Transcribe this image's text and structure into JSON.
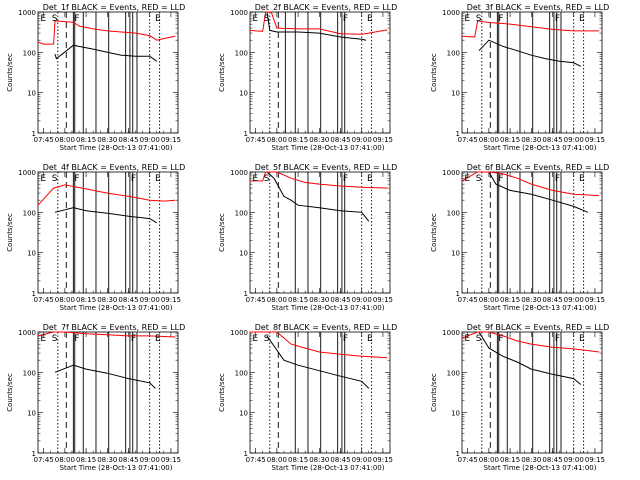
{
  "x_ticks": [
    "07:45",
    "08:00",
    "08:15",
    "08:30",
    "08:45",
    "09:00",
    "09:15"
  ],
  "y_ticks": [
    "1",
    "10",
    "100",
    "1000"
  ],
  "ylabel": "Counts/sec",
  "xlabel": "Start Time (28-Oct-13 07:41:00)",
  "colors": {
    "events": "#000000",
    "lld": "#ff0000",
    "markers": "#000000"
  },
  "chart_data": [
    {
      "type": "line",
      "title": "Det_1f BLACK = Events, RED = LLD",
      "xlabel": "Start Time (28-Oct-13 07:41:00)",
      "ylabel": "Counts/sec",
      "xlim": [
        "07:41",
        "09:20"
      ],
      "ylim": [
        1,
        1000
      ],
      "yscale": "log",
      "labels": [
        {
          "text": "E",
          "x": "07:42"
        },
        {
          "text": "S",
          "x": "07:50"
        },
        {
          "text": "F",
          "x": "08:06"
        },
        {
          "text": "E",
          "x": "09:03"
        }
      ],
      "dashed_lines": [
        "07:55",
        "08:01",
        "09:00",
        "09:07"
      ],
      "solid_lines": [
        "08:06",
        "08:07",
        "08:13",
        "08:22",
        "08:31",
        "08:43",
        "08:46",
        "08:48",
        "08:51"
      ],
      "series": [
        {
          "name": "Events",
          "x": [
            "07:48",
            "07:53",
            "07:54",
            "08:06",
            "08:10",
            "08:20",
            "08:30",
            "08:40",
            "08:50",
            "09:00",
            "09:05"
          ],
          "y": [
            null,
            90,
            70,
            150,
            140,
            120,
            100,
            85,
            80,
            80,
            60
          ]
        },
        {
          "name": "LLD",
          "x": [
            "07:41",
            "07:45",
            "07:52",
            "07:53",
            "08:06",
            "08:10",
            "08:20",
            "08:30",
            "08:40",
            "08:50",
            "09:00",
            "09:05",
            "09:10",
            "09:18"
          ],
          "y": [
            180,
            160,
            160,
            600,
            560,
            450,
            380,
            340,
            320,
            300,
            260,
            200,
            220,
            250
          ]
        }
      ]
    },
    {
      "type": "line",
      "title": "Det_2f BLACK = Events, RED = LLD",
      "xlabel": "Start Time (28-Oct-13 07:41:00)",
      "ylabel": "Counts/sec",
      "xlim": [
        "07:41",
        "09:20"
      ],
      "ylim": [
        1,
        1000
      ],
      "yscale": "log",
      "labels": [
        {
          "text": "E",
          "x": "07:42"
        },
        {
          "text": "S",
          "x": "07:50"
        },
        {
          "text": "F",
          "x": "08:46"
        },
        {
          "text": "E",
          "x": "09:03"
        }
      ],
      "dashed_lines": [
        "07:55",
        "08:01",
        "09:00",
        "09:07"
      ],
      "solid_lines": [
        "08:06",
        "08:13",
        "08:22",
        "08:31",
        "08:43",
        "08:46",
        "08:48"
      ],
      "series": [
        {
          "name": "Events",
          "x": [
            "07:53",
            "07:55",
            "08:00",
            "08:15",
            "08:30",
            "08:45",
            "09:00",
            "09:03"
          ],
          "y": [
            1000,
            350,
            320,
            320,
            300,
            240,
            210,
            200
          ]
        },
        {
          "name": "LLD",
          "x": [
            "07:41",
            "07:50",
            "07:52",
            "07:56",
            "08:00",
            "08:15",
            "08:30",
            "08:45",
            "09:00",
            "09:05",
            "09:18"
          ],
          "y": [
            350,
            330,
            1000,
            1000,
            400,
            380,
            380,
            290,
            280,
            300,
            360
          ]
        }
      ]
    },
    {
      "type": "line",
      "title": "Det_3f BLACK = Events, RED = LLD",
      "xlabel": "Start Time (28-Oct-13 07:41:00)",
      "ylabel": "Counts/sec",
      "xlim": [
        "07:41",
        "09:20"
      ],
      "ylim": [
        1,
        1000
      ],
      "yscale": "log",
      "labels": [
        {
          "text": "E",
          "x": "07:42"
        },
        {
          "text": "S",
          "x": "07:50"
        },
        {
          "text": "F",
          "x": "08:06"
        },
        {
          "text": "F",
          "x": "08:46"
        },
        {
          "text": "E",
          "x": "09:03"
        }
      ],
      "dashed_lines": [
        "07:55",
        "08:01",
        "09:00",
        "09:07"
      ],
      "solid_lines": [
        "08:06",
        "08:07",
        "08:13",
        "08:22",
        "08:31",
        "08:43",
        "08:46",
        "08:48",
        "08:51"
      ],
      "series": [
        {
          "name": "Events",
          "x": [
            "07:53",
            "08:00",
            "08:10",
            "08:20",
            "08:30",
            "08:40",
            "08:50",
            "09:00",
            "09:05"
          ],
          "y": [
            110,
            200,
            140,
            110,
            85,
            70,
            60,
            55,
            45
          ]
        },
        {
          "name": "LLD",
          "x": [
            "07:41",
            "07:50",
            "07:52",
            "08:00",
            "08:15",
            "08:30",
            "08:45",
            "09:00",
            "09:18"
          ],
          "y": [
            250,
            240,
            600,
            550,
            500,
            430,
            370,
            340,
            340
          ]
        }
      ]
    },
    {
      "type": "line",
      "title": "Det_4f BLACK = Events, RED = LLD",
      "xlabel": "Start Time (28-Oct-13 07:41:00)",
      "ylabel": "Counts/sec",
      "xlim": [
        "07:41",
        "09:20"
      ],
      "ylim": [
        1,
        1000
      ],
      "yscale": "log",
      "labels": [
        {
          "text": "E",
          "x": "07:42"
        },
        {
          "text": "S",
          "x": "07:50"
        },
        {
          "text": "F",
          "x": "08:06"
        },
        {
          "text": "F",
          "x": "08:46"
        },
        {
          "text": "E",
          "x": "09:03"
        }
      ],
      "dashed_lines": [
        "07:55",
        "08:01",
        "09:00",
        "09:07"
      ],
      "solid_lines": [
        "08:06",
        "08:07",
        "08:13",
        "08:22",
        "08:31",
        "08:43",
        "08:46",
        "08:48",
        "08:51"
      ],
      "series": [
        {
          "name": "Events",
          "x": [
            "07:53",
            "08:06",
            "08:15",
            "08:30",
            "08:45",
            "09:00",
            "09:05"
          ],
          "y": [
            100,
            130,
            110,
            95,
            80,
            70,
            55
          ]
        },
        {
          "name": "LLD",
          "x": [
            "07:41",
            "07:52",
            "08:00",
            "08:15",
            "08:30",
            "08:45",
            "09:00",
            "09:10",
            "09:18"
          ],
          "y": [
            150,
            400,
            480,
            380,
            300,
            250,
            200,
            190,
            200
          ]
        }
      ]
    },
    {
      "type": "line",
      "title": "Det_5f BLACK = Events, RED = LLD",
      "xlabel": "Start Time (28-Oct-13 07:41:00)",
      "ylabel": "Counts/sec",
      "xlim": [
        "07:41",
        "09:20"
      ],
      "ylim": [
        1,
        1000
      ],
      "yscale": "log",
      "labels": [
        {
          "text": "E",
          "x": "07:42"
        },
        {
          "text": "S",
          "x": "07:50"
        },
        {
          "text": "F",
          "x": "08:46"
        },
        {
          "text": "E",
          "x": "09:03"
        }
      ],
      "dashed_lines": [
        "07:55",
        "08:01",
        "09:00",
        "09:07"
      ],
      "solid_lines": [
        "08:13",
        "08:22",
        "08:31",
        "08:43",
        "08:46",
        "08:48"
      ],
      "series": [
        {
          "name": "Events",
          "x": [
            "07:53",
            "07:58",
            "08:05",
            "08:10",
            "08:15",
            "08:30",
            "08:45",
            "09:00",
            "09:05"
          ],
          "y": [
            1000,
            700,
            250,
            200,
            150,
            130,
            110,
            100,
            60
          ]
        },
        {
          "name": "LLD",
          "x": [
            "07:41",
            "07:50",
            "07:52",
            "08:00",
            "08:10",
            "08:20",
            "08:30",
            "08:45",
            "09:00",
            "09:18"
          ],
          "y": [
            600,
            600,
            1000,
            1000,
            700,
            550,
            500,
            450,
            420,
            400
          ]
        }
      ]
    },
    {
      "type": "line",
      "title": "Det_6f BLACK = Events, RED = LLD",
      "xlabel": "Start Time (28-Oct-13 07:41:00)",
      "ylabel": "Counts/sec",
      "xlim": [
        "07:41",
        "09:20"
      ],
      "ylim": [
        1,
        1000
      ],
      "yscale": "log",
      "labels": [
        {
          "text": "E",
          "x": "07:42"
        },
        {
          "text": "S",
          "x": "07:50"
        },
        {
          "text": "F",
          "x": "08:06"
        },
        {
          "text": "F",
          "x": "08:46"
        },
        {
          "text": "E",
          "x": "09:03"
        }
      ],
      "dashed_lines": [
        "07:55",
        "08:01",
        "09:00",
        "09:07"
      ],
      "solid_lines": [
        "08:06",
        "08:07",
        "08:13",
        "08:22",
        "08:31",
        "08:43",
        "08:46",
        "08:48",
        "08:51"
      ],
      "series": [
        {
          "name": "Events",
          "x": [
            "07:53",
            "08:00",
            "08:05",
            "08:15",
            "08:30",
            "08:45",
            "09:00",
            "09:10"
          ],
          "y": [
            1000,
            1000,
            500,
            350,
            280,
            200,
            140,
            100
          ]
        },
        {
          "name": "LLD",
          "x": [
            "07:41",
            "07:52",
            "08:00",
            "08:10",
            "08:20",
            "08:30",
            "08:45",
            "09:00",
            "09:18"
          ],
          "y": [
            600,
            1000,
            1000,
            900,
            700,
            500,
            350,
            280,
            260
          ]
        }
      ]
    },
    {
      "type": "line",
      "title": "Det_7f BLACK = Events, RED = LLD",
      "xlabel": "Start Time (28-Oct-13 07:41:00)",
      "ylabel": "Counts/sec",
      "xlim": [
        "07:41",
        "09:20"
      ],
      "ylim": [
        1,
        1000
      ],
      "yscale": "log",
      "labels": [
        {
          "text": "E",
          "x": "07:42"
        },
        {
          "text": "S",
          "x": "07:50"
        },
        {
          "text": "F",
          "x": "08:06"
        },
        {
          "text": "F",
          "x": "08:46"
        },
        {
          "text": "E",
          "x": "09:03"
        }
      ],
      "dashed_lines": [
        "07:55",
        "08:01",
        "09:00",
        "09:07"
      ],
      "solid_lines": [
        "08:06",
        "08:07",
        "08:13",
        "08:22",
        "08:31",
        "08:43",
        "08:46",
        "08:48",
        "08:51"
      ],
      "series": [
        {
          "name": "Events",
          "x": [
            "07:53",
            "08:06",
            "08:15",
            "08:30",
            "08:45",
            "09:00",
            "09:04"
          ],
          "y": [
            100,
            150,
            120,
            95,
            70,
            55,
            40
          ]
        },
        {
          "name": "LLD",
          "x": [
            "07:41",
            "07:52",
            "08:00",
            "08:15",
            "08:30",
            "08:45",
            "09:00",
            "09:18"
          ],
          "y": [
            800,
            1000,
            1000,
            900,
            850,
            800,
            800,
            750
          ]
        }
      ]
    },
    {
      "type": "line",
      "title": "Det_8f BLACK = Events, RED = LLD",
      "xlabel": "Start Time (28-Oct-13 07:41:00)",
      "ylabel": "Counts/sec",
      "xlim": [
        "07:41",
        "09:20"
      ],
      "ylim": [
        1,
        1000
      ],
      "yscale": "log",
      "labels": [
        {
          "text": "E",
          "x": "07:42"
        },
        {
          "text": "S",
          "x": "07:50"
        },
        {
          "text": "F",
          "x": "08:46"
        },
        {
          "text": "E",
          "x": "09:03"
        }
      ],
      "dashed_lines": [
        "07:55",
        "08:01",
        "09:00",
        "09:07"
      ],
      "solid_lines": [
        "08:13",
        "08:22",
        "08:31",
        "08:43",
        "08:46",
        "08:48"
      ],
      "series": [
        {
          "name": "Events",
          "x": [
            "07:53",
            "08:05",
            "08:15",
            "08:30",
            "08:45",
            "09:00",
            "09:05"
          ],
          "y": [
            800,
            200,
            150,
            110,
            80,
            60,
            40
          ]
        },
        {
          "name": "LLD",
          "x": [
            "07:41",
            "07:52",
            "08:00",
            "08:10",
            "08:20",
            "08:30",
            "08:45",
            "09:00",
            "09:18"
          ],
          "y": [
            1000,
            1000,
            1000,
            500,
            400,
            320,
            280,
            250,
            230
          ]
        }
      ]
    },
    {
      "type": "line",
      "title": "Det_9f BLACK = Events, RED = LLD",
      "xlabel": "Start Time (28-Oct-13 07:41:00)",
      "ylabel": "Counts/sec",
      "xlim": [
        "07:41",
        "09:20"
      ],
      "ylim": [
        1,
        1000
      ],
      "yscale": "log",
      "labels": [
        {
          "text": "E",
          "x": "07:42"
        },
        {
          "text": "S",
          "x": "07:50"
        },
        {
          "text": "F",
          "x": "08:06"
        },
        {
          "text": "F",
          "x": "08:46"
        },
        {
          "text": "E",
          "x": "09:03"
        }
      ],
      "dashed_lines": [
        "07:55",
        "08:01",
        "09:00",
        "09:07"
      ],
      "solid_lines": [
        "08:06",
        "08:07",
        "08:13",
        "08:22",
        "08:31",
        "08:43",
        "08:46",
        "08:48",
        "08:51"
      ],
      "series": [
        {
          "name": "Events",
          "x": [
            "07:53",
            "08:00",
            "08:10",
            "08:20",
            "08:30",
            "08:45",
            "09:00",
            "09:05"
          ],
          "y": [
            1000,
            400,
            250,
            180,
            120,
            90,
            70,
            50
          ]
        },
        {
          "name": "LLD",
          "x": [
            "07:41",
            "07:52",
            "08:00",
            "08:10",
            "08:20",
            "08:30",
            "08:45",
            "09:00",
            "09:18"
          ],
          "y": [
            700,
            1000,
            1000,
            800,
            600,
            500,
            420,
            380,
            320
          ]
        }
      ]
    }
  ]
}
